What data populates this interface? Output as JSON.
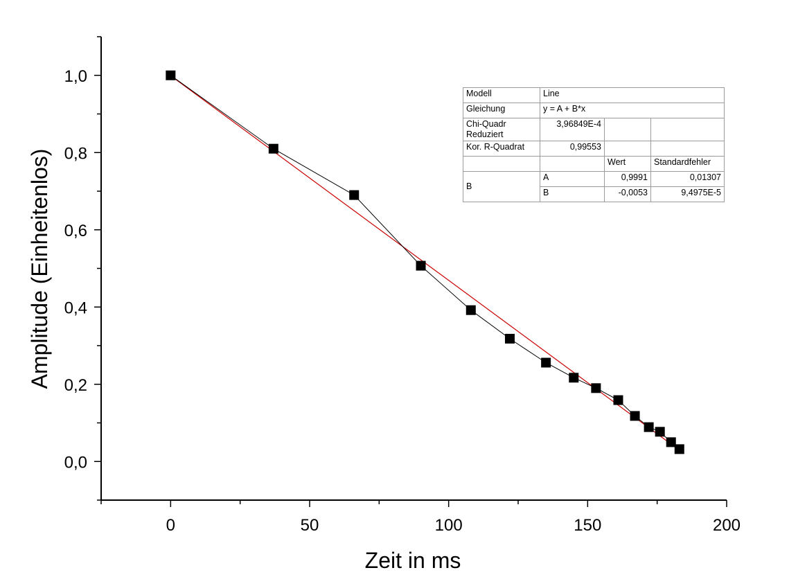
{
  "chart_data": {
    "type": "scatter",
    "xlabel": "Zeit in ms",
    "ylabel": "Amplitude (Einheitenlos)",
    "xlim": [
      -25,
      200
    ],
    "ylim": [
      -0.1,
      1.1
    ],
    "xticks": [
      "0",
      "50",
      "100",
      "150",
      "200"
    ],
    "yticks": [
      "0,0",
      "0,2",
      "0,4",
      "0,6",
      "0,8",
      "1,0"
    ],
    "grid": false,
    "series": [
      {
        "style": "scatter-line",
        "color": "#000000",
        "x": [
          0,
          37,
          66,
          90,
          108,
          122,
          135,
          145,
          153,
          161,
          167,
          172,
          176,
          180,
          183
        ],
        "y": [
          1.0,
          0.81,
          0.69,
          0.507,
          0.392,
          0.318,
          0.256,
          0.217,
          0.19,
          0.159,
          0.118,
          0.089,
          0.077,
          0.05,
          0.032
        ]
      },
      {
        "style": "fit-line",
        "color": "#cc0000",
        "intercept": 0.9991,
        "slope": -0.0053,
        "x_range": [
          0,
          183
        ]
      }
    ]
  },
  "fit_table": {
    "modell_label": "Modell",
    "modell_value": "Line",
    "gleichung_label": "Gleichung",
    "gleichung_value": "y = A + B*x",
    "chi_label_line1": "Chi-Quadr",
    "chi_label_line2": "Reduziert",
    "chi_value": "3,96849E-4",
    "r2_label": "Kor. R-Quadrat",
    "r2_value": "0,99553",
    "wert_header": "Wert",
    "std_header": "Standardfehler",
    "group_label": "B",
    "param_a_name": "A",
    "param_a_value": "0,9991",
    "param_a_error": "0,01307",
    "param_b_name": "B",
    "param_b_value": "-0,0053",
    "param_b_error": "9,4975E-5"
  }
}
